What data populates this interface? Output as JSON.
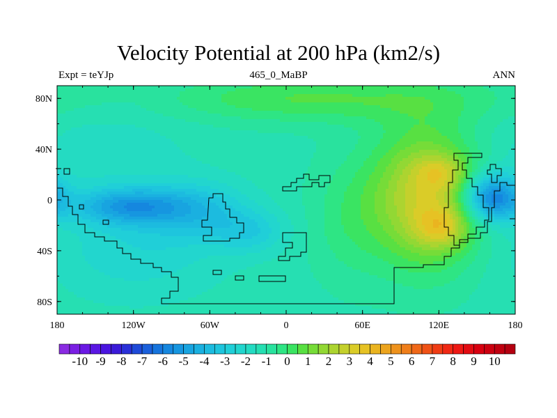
{
  "chart_data": {
    "type": "heatmap",
    "title": "Velocity Potential at 200 hPa (km2/s)",
    "left_label": "Expt = teYJp",
    "center_label": "465_0_MaBP",
    "right_label": "ANN",
    "x_ticks": [
      {
        "value": -180,
        "label": "180"
      },
      {
        "value": -120,
        "label": "120W"
      },
      {
        "value": -60,
        "label": "60W"
      },
      {
        "value": 0,
        "label": "0"
      },
      {
        "value": 60,
        "label": "60E"
      },
      {
        "value": 120,
        "label": "120E"
      },
      {
        "value": 180,
        "label": "180"
      }
    ],
    "y_ticks": [
      {
        "value": 80,
        "label": "80N"
      },
      {
        "value": 40,
        "label": "40N"
      },
      {
        "value": 0,
        "label": "0"
      },
      {
        "value": -40,
        "label": "40S"
      },
      {
        "value": -80,
        "label": "80S"
      }
    ],
    "xlim": [
      -180,
      180
    ],
    "ylim": [
      -90,
      90
    ],
    "colorbar": {
      "min": -11,
      "max": 11,
      "step": 0.5,
      "labels": [
        "-10",
        "-9",
        "-8",
        "-7",
        "-6",
        "-5",
        "-4",
        "-3",
        "-2",
        "-1",
        "0",
        "1",
        "2",
        "3",
        "4",
        "5",
        "6",
        "7",
        "8",
        "9",
        "10"
      ],
      "colors": [
        "#8a2be2",
        "#7a1fe3",
        "#6a19e4",
        "#5a17e3",
        "#4a15e0",
        "#3a1ad8",
        "#2a30d8",
        "#1e4ad8",
        "#1a60db",
        "#1674dd",
        "#1587df",
        "#1696e0",
        "#18a4e0",
        "#1ab0e0",
        "#1cbbdf",
        "#1ec5dd",
        "#20cfd8",
        "#22d6ce",
        "#24dbc2",
        "#26dfb2",
        "#29e29e",
        "#2ee584",
        "#3ae462",
        "#58e042",
        "#76dc38",
        "#92d834",
        "#acd430",
        "#c4d02c",
        "#dacc28",
        "#e6c224",
        "#eab420",
        "#eca41e",
        "#ee921c",
        "#ef7e1a",
        "#f06818",
        "#f05216",
        "#f03c14",
        "#f02814",
        "#ee1814",
        "#e20c12",
        "#d80010",
        "#cc0010",
        "#c00010",
        "#b40010"
      ]
    },
    "field_model": {
      "base": -1.2,
      "gaussians": [
        {
          "lon": -124,
          "lat": -5,
          "sx": 30,
          "sy": 10,
          "amp": -3.4
        },
        {
          "lon": -70,
          "lat": -8,
          "sx": 28,
          "sy": 16,
          "amp": -2.0
        },
        {
          "lon": -28,
          "lat": -25,
          "sx": 20,
          "sy": 12,
          "amp": -1.5
        },
        {
          "lon": -118,
          "lat": -38,
          "sx": 48,
          "sy": 28,
          "amp": -1.2
        },
        {
          "lon": -145,
          "lat": 38,
          "sx": 45,
          "sy": 22,
          "amp": -0.7
        },
        {
          "lon": 48,
          "lat": -15,
          "sx": 22,
          "sy": 35,
          "amp": 0.9
        },
        {
          "lon": 110,
          "lat": 2,
          "sx": 30,
          "sy": 38,
          "amp": 4.2
        },
        {
          "lon": 122,
          "lat": 22,
          "sx": 14,
          "sy": 9,
          "amp": 1.4
        },
        {
          "lon": 122,
          "lat": -22,
          "sx": 14,
          "sy": 11,
          "amp": 2.0
        },
        {
          "lon": 162,
          "lat": 2,
          "sx": 16,
          "sy": 13,
          "amp": -5.0
        },
        {
          "lon": 60,
          "lat": 80,
          "sx": 90,
          "sy": 14,
          "amp": 1.3
        },
        {
          "lon": -20,
          "lat": 80,
          "sx": 60,
          "sy": 12,
          "amp": 0.7
        }
      ]
    }
  }
}
